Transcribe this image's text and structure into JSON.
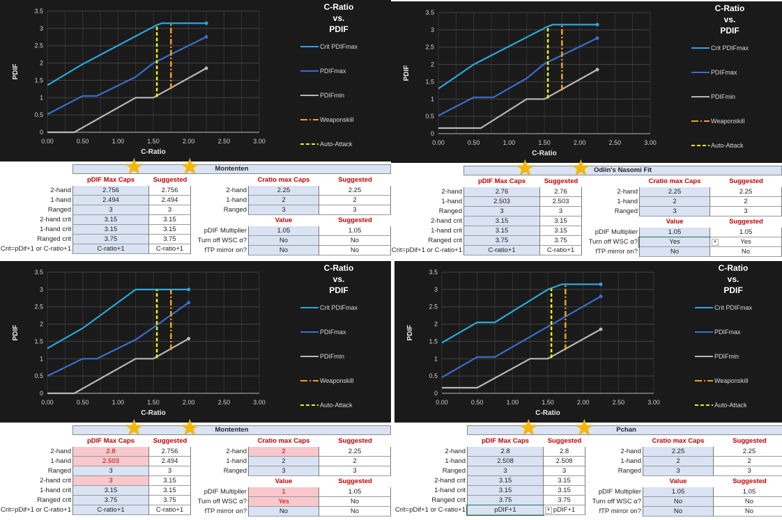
{
  "chart_data": [
    {
      "type": "line",
      "title": [
        "C-Ratio",
        "vs.",
        "PDIF"
      ],
      "xlabel": "C-Ratio",
      "ylabel": "PDIF",
      "xlim": [
        0,
        3
      ],
      "ylim": [
        0,
        3.5
      ],
      "xticks": [
        "0.00",
        "0.50",
        "1.00",
        "1.50",
        "2.00",
        "2.50",
        "3.00"
      ],
      "yticks": [
        "0",
        "0.5",
        "1",
        "1.5",
        "2",
        "2.5",
        "3",
        "3.5"
      ],
      "grid": true,
      "legend": "right",
      "series": [
        {
          "name": "Crit PDIFmax",
          "points": [
            [
              0,
              1.36
            ],
            [
              0.5,
              1.97
            ],
            [
              1.55,
              3.1
            ],
            [
              1.62,
              3.15
            ],
            [
              2.25,
              3.15
            ]
          ]
        },
        {
          "name": "PDIFmax",
          "points": [
            [
              0,
              0.52
            ],
            [
              0.5,
              1.05
            ],
            [
              0.7,
              1.05
            ],
            [
              1.25,
              1.6
            ],
            [
              1.5,
              2.0
            ],
            [
              2.25,
              2.756
            ]
          ]
        },
        {
          "name": "PDIFmin",
          "points": [
            [
              0,
              0
            ],
            [
              0.38,
              0
            ],
            [
              1.25,
              1.0
            ],
            [
              1.5,
              1.0
            ],
            [
              2.25,
              1.85
            ]
          ]
        },
        {
          "name": "Weaponskill",
          "points": [
            [
              1.75,
              1.25
            ],
            [
              1.75,
              3.15
            ]
          ]
        },
        {
          "name": "Auto-Attack",
          "points": [
            [
              1.55,
              1.02
            ],
            [
              1.55,
              3.1
            ]
          ]
        }
      ]
    },
    {
      "type": "line",
      "title": [
        "C-Ratio",
        "vs.",
        "PDIF"
      ],
      "xlabel": "C-Ratio",
      "ylabel": "PDIF",
      "xlim": [
        0,
        3
      ],
      "ylim": [
        0,
        3.5
      ],
      "xticks": [
        "0.00",
        "0.50",
        "1.00",
        "1.50",
        "2.00",
        "2.50",
        "3.00"
      ],
      "yticks": [
        "0",
        "0.5",
        "1",
        "1.5",
        "2",
        "2.5",
        "3",
        "3.5"
      ],
      "grid": true,
      "legend": "right",
      "series": [
        {
          "name": "Crit PDIFmax",
          "points": [
            [
              0,
              1.3
            ],
            [
              0.5,
              2.0
            ],
            [
              1.55,
              3.1
            ],
            [
              1.62,
              3.15
            ],
            [
              2.25,
              3.15
            ]
          ]
        },
        {
          "name": "PDIFmax",
          "points": [
            [
              0,
              0.52
            ],
            [
              0.5,
              1.05
            ],
            [
              0.78,
              1.05
            ],
            [
              1.25,
              1.6
            ],
            [
              1.5,
              2.02
            ],
            [
              2.25,
              2.76
            ]
          ]
        },
        {
          "name": "PDIFmin",
          "points": [
            [
              0,
              0.16
            ],
            [
              0.6,
              0.16
            ],
            [
              1.25,
              1.0
            ],
            [
              1.5,
              1.0
            ],
            [
              2.25,
              1.85
            ]
          ]
        },
        {
          "name": "Weaponskill",
          "points": [
            [
              1.75,
              1.25
            ],
            [
              1.75,
              3.15
            ]
          ]
        },
        {
          "name": "Auto-Attack",
          "points": [
            [
              1.55,
              1.02
            ],
            [
              1.55,
              3.1
            ]
          ]
        }
      ]
    },
    {
      "type": "line",
      "title": [
        "C-Ratio",
        "vs.",
        "PDIF"
      ],
      "xlabel": "C-Ratio",
      "ylabel": "PDIF",
      "xlim": [
        0,
        3
      ],
      "ylim": [
        0,
        3.5
      ],
      "xticks": [
        "0.00",
        "0.50",
        "1.00",
        "1.50",
        "2.00",
        "2.50",
        "3.00"
      ],
      "yticks": [
        "0",
        "0.5",
        "1",
        "1.5",
        "2",
        "2.5",
        "3",
        "3.5"
      ],
      "grid": true,
      "legend": "right",
      "series": [
        {
          "name": "Crit PDIFmax",
          "points": [
            [
              0,
              1.3
            ],
            [
              0.5,
              1.88
            ],
            [
              1.25,
              3.0
            ],
            [
              2.0,
              3.0
            ]
          ]
        },
        {
          "name": "PDIFmax",
          "points": [
            [
              0,
              0.5
            ],
            [
              0.5,
              1.0
            ],
            [
              0.7,
              1.0
            ],
            [
              1.25,
              1.55
            ],
            [
              1.5,
              1.9
            ],
            [
              2.0,
              2.62
            ]
          ]
        },
        {
          "name": "PDIFmin",
          "points": [
            [
              0,
              0
            ],
            [
              0.38,
              0
            ],
            [
              1.25,
              1.0
            ],
            [
              1.5,
              1.0
            ],
            [
              2.0,
              1.58
            ]
          ]
        },
        {
          "name": "Weaponskill",
          "points": [
            [
              1.75,
              1.25
            ],
            [
              1.75,
              3.0
            ]
          ]
        },
        {
          "name": "Auto-Attack",
          "points": [
            [
              1.55,
              1.02
            ],
            [
              1.55,
              3.0
            ]
          ]
        }
      ]
    },
    {
      "type": "line",
      "title": [
        "C-Ratio",
        "vs.",
        "PDIF"
      ],
      "xlabel": "C-Ratio",
      "ylabel": "PDIF",
      "xlim": [
        0,
        3
      ],
      "ylim": [
        0,
        3.5
      ],
      "xticks": [
        "0.00",
        "0.50",
        "1.00",
        "1.50",
        "2.00",
        "2.50",
        "3.00"
      ],
      "yticks": [
        "0",
        "0.5",
        "1",
        "1.5",
        "2",
        "2.5",
        "3",
        "3.5"
      ],
      "grid": true,
      "legend": "right",
      "series": [
        {
          "name": "Crit PDIFmax",
          "points": [
            [
              0,
              1.46
            ],
            [
              0.5,
              2.05
            ],
            [
              0.75,
              2.05
            ],
            [
              1.5,
              3.0
            ],
            [
              1.7,
              3.15
            ],
            [
              2.25,
              3.15
            ]
          ]
        },
        {
          "name": "PDIFmax",
          "points": [
            [
              0,
              0.46
            ],
            [
              0.5,
              1.05
            ],
            [
              0.75,
              1.05
            ],
            [
              2.25,
              2.8
            ]
          ]
        },
        {
          "name": "PDIFmin",
          "points": [
            [
              0,
              0.16
            ],
            [
              0.5,
              0.16
            ],
            [
              1.25,
              1.0
            ],
            [
              1.5,
              1.0
            ],
            [
              2.25,
              1.85
            ]
          ]
        },
        {
          "name": "Weaponskill",
          "points": [
            [
              1.75,
              1.25
            ],
            [
              1.75,
              3.15
            ]
          ]
        },
        {
          "name": "Auto-Attack",
          "points": [
            [
              1.55,
              1.02
            ],
            [
              1.55,
              3.02
            ]
          ]
        }
      ]
    }
  ],
  "colors": {
    "crit": "#29a8e0",
    "pdifmax": "#3a6fd0",
    "pdifmin": "#b8b8b8",
    "weaponskill": "#f0a020",
    "autoattack": "#f0f020",
    "header_red": "#c00000",
    "input_blue": "#dae3f3",
    "error_pink": "#f8c8cc"
  },
  "labels": {
    "pdif_caps_hdr": "pDIF Max Caps",
    "suggested_hdr": "Suggested",
    "cratio_caps_hdr": "Cratio max Caps",
    "value_hdr": "Value",
    "rows_left": [
      "2-hand",
      "1-hand",
      "Ranged",
      "2-hand crit",
      "1-hand crit",
      "Ranged crit",
      "Crit=pDif+1 or C-ratio+1"
    ],
    "rows_cratio": [
      "2-hand",
      "1-hand",
      "Ranged"
    ],
    "rows_value": [
      "pDIF Multiplier",
      "Turn off WSC α?",
      "fTP mirror on?"
    ]
  },
  "panels": [
    {
      "name": "Montenten",
      "pdif": [
        "2.756",
        "2.494",
        "3",
        "3.15",
        "3.15",
        "3.75",
        "C-ratio+1"
      ],
      "pdif_sug": [
        "2.756",
        "2.494",
        "3",
        "3.15",
        "3.15",
        "3.75",
        "C-ratio+1"
      ],
      "pdif_bad": [
        false,
        false,
        false,
        false,
        false,
        false,
        false
      ],
      "cratio": [
        "2.25",
        "2",
        "3"
      ],
      "cratio_sug": [
        "2.25",
        "2",
        "3"
      ],
      "cratio_bad": [
        false,
        false,
        false
      ],
      "value": [
        "1.05",
        "No",
        "No"
      ],
      "value_sug": [
        "1.05",
        "No",
        "No"
      ],
      "value_bad": [
        false,
        false,
        false
      ]
    },
    {
      "name": "Odiin's Nasomi Fit",
      "pdif": [
        "2.76",
        "2.503",
        "3",
        "3.15",
        "3.15",
        "3.75",
        "C-ratio+1"
      ],
      "pdif_sug": [
        "2.76",
        "2.503",
        "3",
        "3.15",
        "3.15",
        "3.75",
        "C-ratio+1"
      ],
      "pdif_bad": [
        false,
        false,
        false,
        false,
        false,
        false,
        false
      ],
      "cratio": [
        "2.25",
        "2",
        "3"
      ],
      "cratio_sug": [
        "2.25",
        "2",
        "3"
      ],
      "cratio_bad": [
        false,
        false,
        false
      ],
      "value": [
        "1.05",
        "Yes",
        "No"
      ],
      "value_sug": [
        "1.05",
        "Yes",
        "No"
      ],
      "value_bad": [
        false,
        false,
        false
      ]
    },
    {
      "name": "Montenten",
      "pdif": [
        "2.8",
        "2.503",
        "3",
        "3",
        "3.15",
        "3.75",
        "C-ratio+1"
      ],
      "pdif_sug": [
        "2.756",
        "2.494",
        "3",
        "3.15",
        "3.15",
        "3.75",
        "C-ratio+1"
      ],
      "pdif_bad": [
        true,
        true,
        false,
        true,
        false,
        false,
        false
      ],
      "cratio": [
        "2",
        "2",
        "3"
      ],
      "cratio_sug": [
        "2.25",
        "2",
        "3"
      ],
      "cratio_bad": [
        true,
        false,
        false
      ],
      "value": [
        "1",
        "Yes",
        "No"
      ],
      "value_sug": [
        "1.05",
        "No",
        "No"
      ],
      "value_bad": [
        true,
        true,
        false
      ]
    },
    {
      "name": "Pchan",
      "pdif": [
        "2.8",
        "2.508",
        "3",
        "3.15",
        "3.15",
        "3.75",
        "pDIF+1"
      ],
      "pdif_sug": [
        "2.8",
        "2.508",
        "3",
        "3.15",
        "3.15",
        "3.75",
        "pDIF+1"
      ],
      "pdif_bad": [
        false,
        false,
        false,
        false,
        false,
        false,
        false
      ],
      "cratio": [
        "2.25",
        "2",
        "3"
      ],
      "cratio_sug": [
        "2.25",
        "2",
        "3"
      ],
      "cratio_bad": [
        false,
        false,
        false
      ],
      "value": [
        "1.05",
        "No",
        "No"
      ],
      "value_sug": [
        "1.05",
        "No",
        "No"
      ],
      "value_bad": [
        false,
        false,
        false
      ]
    }
  ]
}
